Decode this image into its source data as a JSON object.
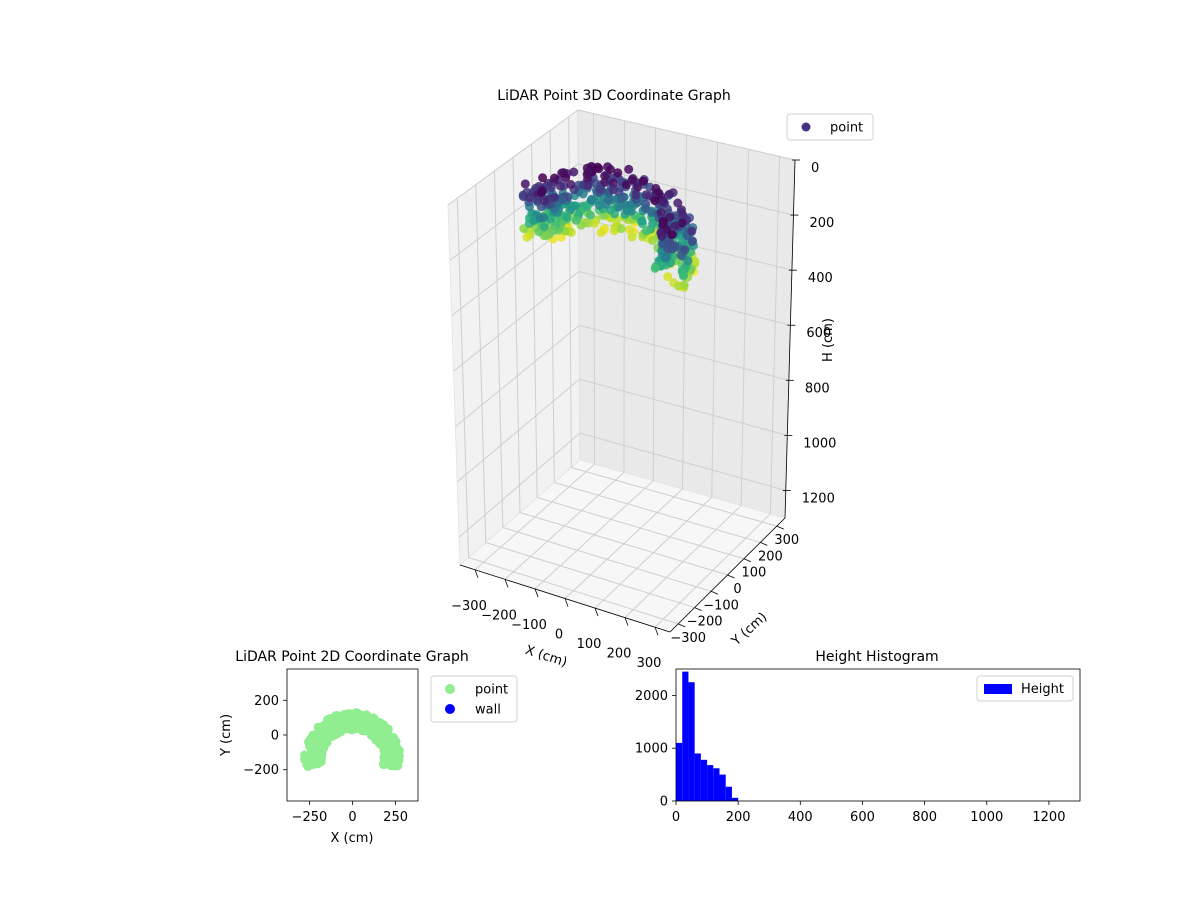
{
  "chart_data": [
    {
      "type": "scatter",
      "title": "LiDAR Point 3D Coordinate Graph",
      "xlabel": "X (cm)",
      "ylabel": "Y (cm)",
      "zlabel": "H (cm)",
      "xticks": [
        -300,
        -200,
        -100,
        0,
        100,
        200,
        300
      ],
      "yticks": [
        -300,
        -200,
        -100,
        0,
        100,
        200,
        300
      ],
      "zticks": [
        0,
        200,
        400,
        600,
        800,
        1000,
        1200
      ],
      "xlim": [
        -350,
        350
      ],
      "ylim": [
        -350,
        350
      ],
      "zlim": [
        0,
        1300
      ],
      "z_inverted": true,
      "colormap": "viridis",
      "grid": true,
      "legend": {
        "placement": "upper-right",
        "entries": [
          {
            "label": "point",
            "color": "#46327e"
          }
        ]
      },
      "series": [
        {
          "name": "point",
          "arc": {
            "radius_cm": 230,
            "thickness_cm": 100,
            "center_y_cm": -150,
            "height_min_cm": 0,
            "height_max_cm": 200
          }
        }
      ]
    },
    {
      "type": "scatter",
      "title": "LiDAR Point 2D Coordinate Graph",
      "xlabel": "X (cm)",
      "ylabel": "Y (cm)",
      "xticks": [
        -250,
        0,
        250
      ],
      "yticks": [
        -200,
        0,
        200
      ],
      "xlim": [
        -380,
        380
      ],
      "ylim": [
        -380,
        380
      ],
      "legend": {
        "placement": "outside-right",
        "entries": [
          {
            "label": "point",
            "color": "#90ee90"
          },
          {
            "label": "wall",
            "color": "#0000ff"
          }
        ]
      },
      "series": [
        {
          "name": "point",
          "color": "#90ee90",
          "arc": {
            "outer_radius_cm": 280,
            "inner_radius_cm": 180,
            "center_y_cm": -150
          }
        },
        {
          "name": "wall",
          "color": "#0000ff",
          "points": []
        }
      ]
    },
    {
      "type": "bar",
      "title": "Height Histogram",
      "xlabel": "",
      "ylabel": "",
      "xlim": [
        0,
        1300
      ],
      "ylim": [
        0,
        2500
      ],
      "xticks": [
        0,
        200,
        400,
        600,
        800,
        1000,
        1200
      ],
      "yticks": [
        0,
        1000,
        2000
      ],
      "bin_width": 20,
      "bin_start": 0,
      "values": [
        1100,
        2450,
        2250,
        900,
        780,
        680,
        620,
        500,
        270,
        60
      ],
      "color": "#0000ff",
      "legend": {
        "placement": "upper-right",
        "entries": [
          {
            "label": "Height",
            "color": "#0000ff"
          }
        ]
      }
    }
  ]
}
